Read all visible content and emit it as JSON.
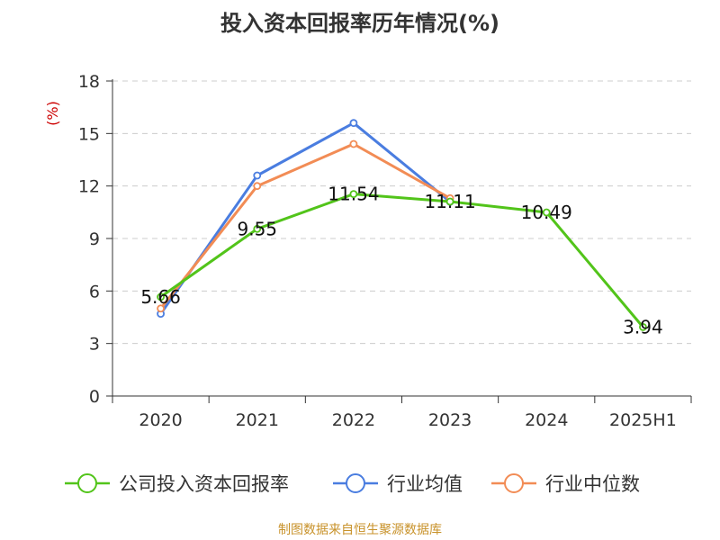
{
  "title": "投入资本回报率历年情况(%)",
  "source": "制图数据来自恒生聚源数据库",
  "colors": {
    "company": "#52c41a",
    "industry_avg": "#4a7de0",
    "industry_median": "#f28c55",
    "grid": "#cccccc",
    "axis": "#333333",
    "unit": "#cc0000",
    "source": "#c8922a"
  },
  "chart_data": {
    "type": "line",
    "title": "投入资本回报率历年情况(%)",
    "ylabel": "(%)",
    "ylim": [
      0,
      18
    ],
    "yticks": [
      0,
      3,
      6,
      9,
      12,
      15,
      18
    ],
    "categories": [
      "2020",
      "2021",
      "2022",
      "2023",
      "2024",
      "2025H1"
    ],
    "grid": true,
    "legend_position": "bottom",
    "series": [
      {
        "name": "公司投入资本回报率",
        "color": "#52c41a",
        "values": [
          5.66,
          9.55,
          11.54,
          11.11,
          10.49,
          3.94
        ],
        "labels": [
          "5.66",
          "9.55",
          "11.54",
          "11.11",
          "10.49",
          "3.94"
        ]
      },
      {
        "name": "行业均值",
        "color": "#4a7de0",
        "values": [
          4.7,
          12.6,
          15.6,
          11.1,
          null,
          null
        ]
      },
      {
        "name": "行业中位数",
        "color": "#f28c55",
        "values": [
          5.0,
          12.0,
          14.4,
          11.3,
          null,
          null
        ]
      }
    ]
  }
}
